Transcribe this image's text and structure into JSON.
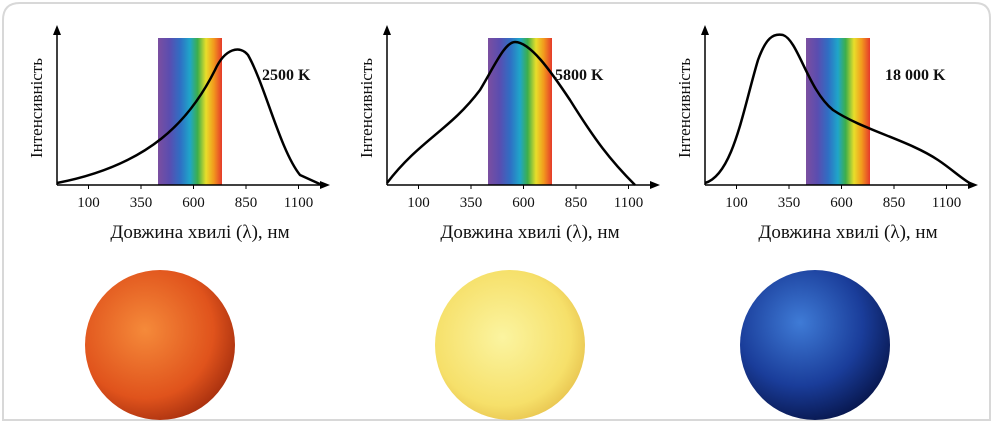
{
  "charts": [
    {
      "y_label": "Інтенсивність",
      "x_label": "Довжина хвилі (λ), нм",
      "temperature": "2500 K",
      "xlim": [
        -50,
        1250
      ],
      "xticks": [
        100,
        350,
        600,
        850,
        1100
      ]
    },
    {
      "y_label": "Інтенсивність",
      "x_label": "Довжина хвилі (λ), нм",
      "temperature": "5800 K",
      "xlim": [
        -50,
        1250
      ],
      "xticks": [
        100,
        350,
        600,
        850,
        1100
      ]
    },
    {
      "y_label": "Інтенсивність",
      "x_label": "Довжина хвилі (λ), нм",
      "temperature": "18 000 K",
      "xlim": [
        -50,
        1250
      ],
      "xticks": [
        100,
        350,
        600,
        850,
        1100
      ]
    }
  ]
}
